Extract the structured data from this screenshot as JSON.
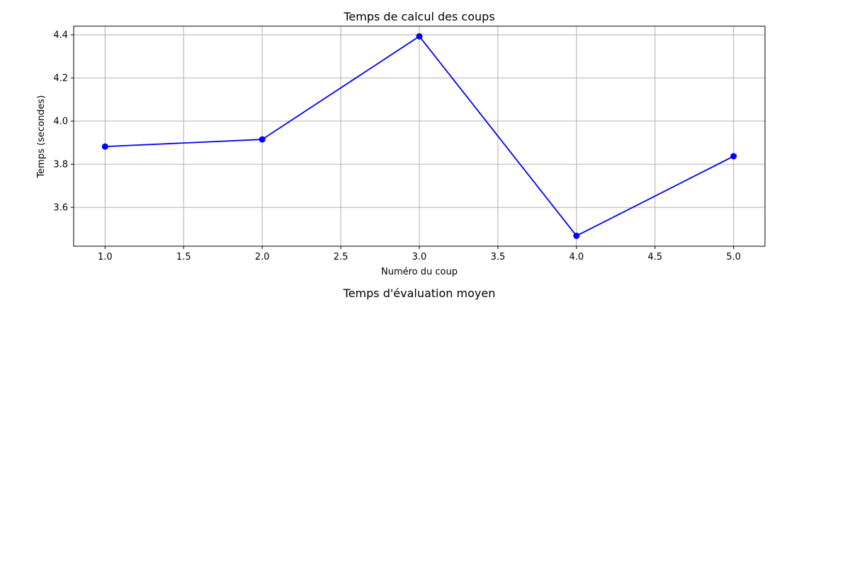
{
  "chart_data": {
    "type": "line",
    "title": "Temps de calcul des coups",
    "xlabel": "Numéro du coup",
    "ylabel": "Temps (secondes)",
    "x": [
      1,
      2,
      3,
      4,
      5
    ],
    "series": [
      {
        "values": [
          3.882,
          3.915,
          4.393,
          3.468,
          3.837
        ],
        "color": "#0000ff",
        "marker": "circle"
      }
    ],
    "xlim": [
      0.8,
      5.2
    ],
    "ylim": [
      3.42,
      4.44
    ],
    "xticks": [
      "1.0",
      "1.5",
      "2.0",
      "2.5",
      "3.0",
      "3.5",
      "4.0",
      "4.5",
      "5.0"
    ],
    "yticks": [
      "3.6",
      "3.8",
      "4.0",
      "4.2",
      "4.4"
    ],
    "grid": true,
    "legend": "none"
  },
  "second_panel": {
    "title": "Temps d'évaluation moyen"
  }
}
